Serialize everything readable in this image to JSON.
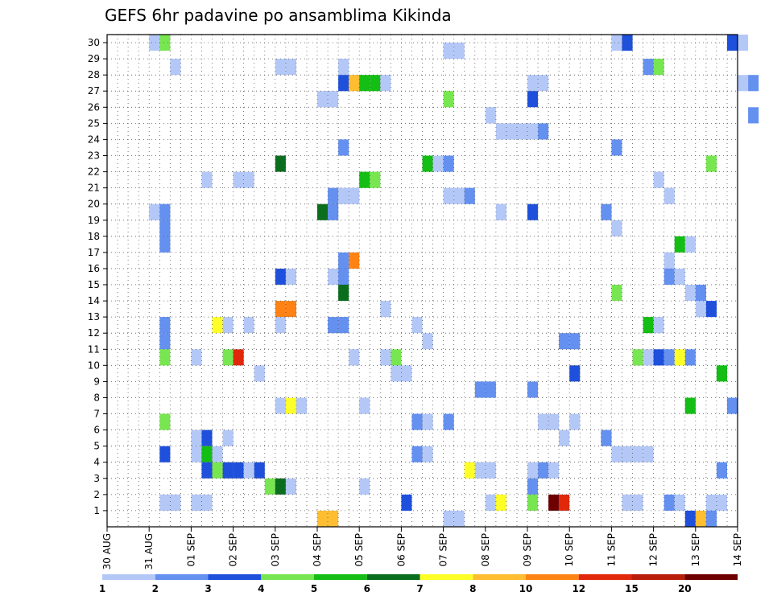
{
  "chart_data": {
    "type": "heatmap",
    "title": "GEFS 6hr padavine po ansamblima Kikinda",
    "xlabel": "",
    "ylabel": "",
    "grid": true,
    "time_step_hours": 6,
    "y_categories": [
      "1",
      "2",
      "3",
      "4",
      "5",
      "6",
      "7",
      "8",
      "9",
      "10",
      "11",
      "12",
      "13",
      "14",
      "15",
      "16",
      "17",
      "18",
      "19",
      "20",
      "21",
      "22",
      "23",
      "24",
      "25",
      "26",
      "27",
      "28",
      "29",
      "30"
    ],
    "x_tick_labels": [
      "30 AUG",
      "31 AUG",
      "01 SEP",
      "02 SEP",
      "03 SEP",
      "04 SEP",
      "05 SEP",
      "06 SEP",
      "07 SEP",
      "08 SEP",
      "09 SEP",
      "10 SEP",
      "11 SEP",
      "12 SEP",
      "13 SEP",
      "14 SEP"
    ],
    "legend": {
      "placement": "bottom",
      "labels": [
        "1",
        "2",
        "3",
        "4",
        "5",
        "6",
        "7",
        "8",
        "10",
        "12",
        "15",
        "20"
      ],
      "colors": [
        "#b4c8f8",
        "#6490f0",
        "#1e50dc",
        "#78e650",
        "#14be14",
        "#0a6e1e",
        "#ffff28",
        "#ffbe32",
        "#ff8214",
        "#e1280a",
        "#b91e0a",
        "#6e0000"
      ]
    },
    "cells": [
      {
        "member": 30,
        "start": "31 AUG 00Z",
        "category": 0
      },
      {
        "member": 30,
        "start": "31 AUG 06Z",
        "category": 3
      },
      {
        "member": 30,
        "start": "11 SEP 00Z",
        "category": 0
      },
      {
        "member": 30,
        "start": "11 SEP 06Z",
        "category": 2
      },
      {
        "member": 30,
        "start": "13 SEP 18Z",
        "category": 2
      },
      {
        "member": 30,
        "start": "14 SEP 00Z",
        "category": 0
      },
      {
        "member": 29,
        "start": "07 SEP 00Z",
        "category": 0
      },
      {
        "member": 29,
        "start": "07 SEP 06Z",
        "category": 0
      },
      {
        "member": 28,
        "start": "31 AUG 12Z",
        "category": 0
      },
      {
        "member": 28,
        "start": "03 SEP 00Z",
        "category": 0
      },
      {
        "member": 28,
        "start": "03 SEP 06Z",
        "category": 0
      },
      {
        "member": 28,
        "start": "04 SEP 12Z",
        "category": 0
      },
      {
        "member": 28,
        "start": "11 SEP 18Z",
        "category": 1
      },
      {
        "member": 28,
        "start": "12 SEP 00Z",
        "category": 3
      },
      {
        "member": 27,
        "start": "04 SEP 12Z",
        "category": 2
      },
      {
        "member": 27,
        "start": "04 SEP 18Z",
        "category": 7
      },
      {
        "member": 27,
        "start": "05 SEP 00Z",
        "category": 4
      },
      {
        "member": 27,
        "start": "05 SEP 06Z",
        "category": 4
      },
      {
        "member": 27,
        "start": "05 SEP 12Z",
        "category": 0
      },
      {
        "member": 27,
        "start": "09 SEP 00Z",
        "category": 0
      },
      {
        "member": 27,
        "start": "09 SEP 06Z",
        "category": 0
      },
      {
        "member": 27,
        "start": "14 SEP 00Z",
        "category": 0
      },
      {
        "member": 27,
        "start": "14 SEP 06Z",
        "category": 1
      },
      {
        "member": 26,
        "start": "04 SEP 00Z",
        "category": 0
      },
      {
        "member": 26,
        "start": "04 SEP 06Z",
        "category": 0
      },
      {
        "member": 26,
        "start": "07 SEP 00Z",
        "category": 3
      },
      {
        "member": 26,
        "start": "09 SEP 00Z",
        "category": 2
      },
      {
        "member": 25,
        "start": "08 SEP 00Z",
        "category": 0
      },
      {
        "member": 25,
        "start": "14 SEP 06Z",
        "category": 1
      },
      {
        "member": 24,
        "start": "08 SEP 06Z",
        "category": 0
      },
      {
        "member": 24,
        "start": "08 SEP 12Z",
        "category": 0
      },
      {
        "member": 24,
        "start": "08 SEP 18Z",
        "category": 0
      },
      {
        "member": 24,
        "start": "09 SEP 00Z",
        "category": 0
      },
      {
        "member": 24,
        "start": "09 SEP 06Z",
        "category": 1
      },
      {
        "member": 23,
        "start": "04 SEP 12Z",
        "category": 1
      },
      {
        "member": 23,
        "start": "11 SEP 00Z",
        "category": 1
      },
      {
        "member": 22,
        "start": "03 SEP 00Z",
        "category": 5
      },
      {
        "member": 22,
        "start": "06 SEP 12Z",
        "category": 4
      },
      {
        "member": 22,
        "start": "06 SEP 18Z",
        "category": 0
      },
      {
        "member": 22,
        "start": "07 SEP 00Z",
        "category": 1
      },
      {
        "member": 22,
        "start": "13 SEP 06Z",
        "category": 3
      },
      {
        "member": 21,
        "start": "01 SEP 06Z",
        "category": 0
      },
      {
        "member": 21,
        "start": "02 SEP 00Z",
        "category": 0
      },
      {
        "member": 21,
        "start": "02 SEP 06Z",
        "category": 0
      },
      {
        "member": 21,
        "start": "05 SEP 00Z",
        "category": 4
      },
      {
        "member": 21,
        "start": "05 SEP 06Z",
        "category": 3
      },
      {
        "member": 21,
        "start": "12 SEP 00Z",
        "category": 0
      },
      {
        "member": 20,
        "start": "04 SEP 06Z",
        "category": 1
      },
      {
        "member": 20,
        "start": "04 SEP 12Z",
        "category": 0
      },
      {
        "member": 20,
        "start": "04 SEP 18Z",
        "category": 0
      },
      {
        "member": 20,
        "start": "07 SEP 00Z",
        "category": 0
      },
      {
        "member": 20,
        "start": "07 SEP 06Z",
        "category": 0
      },
      {
        "member": 20,
        "start": "07 SEP 12Z",
        "category": 1
      },
      {
        "member": 20,
        "start": "12 SEP 06Z",
        "category": 0
      },
      {
        "member": 19,
        "start": "31 AUG 00Z",
        "category": 0
      },
      {
        "member": 19,
        "start": "31 AUG 06Z",
        "category": 1
      },
      {
        "member": 19,
        "start": "04 SEP 00Z",
        "category": 5
      },
      {
        "member": 19,
        "start": "04 SEP 06Z",
        "category": 1
      },
      {
        "member": 19,
        "start": "08 SEP 06Z",
        "category": 0
      },
      {
        "member": 19,
        "start": "09 SEP 00Z",
        "category": 2
      },
      {
        "member": 19,
        "start": "10 SEP 18Z",
        "category": 1
      },
      {
        "member": 18,
        "start": "31 AUG 06Z",
        "category": 1
      },
      {
        "member": 18,
        "start": "11 SEP 00Z",
        "category": 0
      },
      {
        "member": 17,
        "start": "31 AUG 06Z",
        "category": 1
      },
      {
        "member": 17,
        "start": "12 SEP 12Z",
        "category": 4
      },
      {
        "member": 17,
        "start": "12 SEP 18Z",
        "category": 0
      },
      {
        "member": 16,
        "start": "04 SEP 12Z",
        "category": 1
      },
      {
        "member": 16,
        "start": "04 SEP 18Z",
        "category": 8
      },
      {
        "member": 16,
        "start": "12 SEP 06Z",
        "category": 0
      },
      {
        "member": 15,
        "start": "03 SEP 00Z",
        "category": 2
      },
      {
        "member": 15,
        "start": "03 SEP 06Z",
        "category": 0
      },
      {
        "member": 15,
        "start": "04 SEP 06Z",
        "category": 0
      },
      {
        "member": 15,
        "start": "04 SEP 12Z",
        "category": 1
      },
      {
        "member": 15,
        "start": "12 SEP 06Z",
        "category": 1
      },
      {
        "member": 15,
        "start": "12 SEP 12Z",
        "category": 0
      },
      {
        "member": 14,
        "start": "04 SEP 12Z",
        "category": 5
      },
      {
        "member": 14,
        "start": "11 SEP 00Z",
        "category": 3
      },
      {
        "member": 14,
        "start": "12 SEP 18Z",
        "category": 0
      },
      {
        "member": 14,
        "start": "13 SEP 00Z",
        "category": 1
      },
      {
        "member": 13,
        "start": "03 SEP 00Z",
        "category": 8
      },
      {
        "member": 13,
        "start": "03 SEP 06Z",
        "category": 8
      },
      {
        "member": 13,
        "start": "05 SEP 12Z",
        "category": 0
      },
      {
        "member": 13,
        "start": "13 SEP 00Z",
        "category": 0
      },
      {
        "member": 13,
        "start": "13 SEP 06Z",
        "category": 2
      },
      {
        "member": 12,
        "start": "01 SEP 12Z",
        "category": 6
      },
      {
        "member": 12,
        "start": "01 SEP 18Z",
        "category": 0
      },
      {
        "member": 12,
        "start": "02 SEP 06Z",
        "category": 0
      },
      {
        "member": 12,
        "start": "03 SEP 00Z",
        "category": 0
      },
      {
        "member": 12,
        "start": "04 SEP 06Z",
        "category": 1
      },
      {
        "member": 12,
        "start": "04 SEP 12Z",
        "category": 1
      },
      {
        "member": 12,
        "start": "06 SEP 06Z",
        "category": 0
      },
      {
        "member": 12,
        "start": "11 SEP 18Z",
        "category": 4
      },
      {
        "member": 12,
        "start": "12 SEP 00Z",
        "category": 0
      },
      {
        "member": 12,
        "start": "31 AUG 06Z",
        "category": 1
      },
      {
        "member": 11,
        "start": "31 AUG 06Z",
        "category": 1
      },
      {
        "member": 11,
        "start": "06 SEP 12Z",
        "category": 0
      },
      {
        "member": 11,
        "start": "09 SEP 18Z",
        "category": 1
      },
      {
        "member": 11,
        "start": "10 SEP 00Z",
        "category": 1
      },
      {
        "member": 10,
        "start": "31 AUG 06Z",
        "category": 3
      },
      {
        "member": 10,
        "start": "01 SEP 00Z",
        "category": 0
      },
      {
        "member": 10,
        "start": "01 SEP 18Z",
        "category": 3
      },
      {
        "member": 10,
        "start": "02 SEP 00Z",
        "category": 9
      },
      {
        "member": 10,
        "start": "04 SEP 18Z",
        "category": 0
      },
      {
        "member": 10,
        "start": "05 SEP 12Z",
        "category": 0
      },
      {
        "member": 10,
        "start": "05 SEP 18Z",
        "category": 3
      },
      {
        "member": 10,
        "start": "11 SEP 12Z",
        "category": 3
      },
      {
        "member": 10,
        "start": "11 SEP 18Z",
        "category": 0
      },
      {
        "member": 10,
        "start": "12 SEP 00Z",
        "category": 2
      },
      {
        "member": 10,
        "start": "12 SEP 06Z",
        "category": 1
      },
      {
        "member": 10,
        "start": "12 SEP 12Z",
        "category": 6
      },
      {
        "member": 10,
        "start": "12 SEP 18Z",
        "category": 1
      },
      {
        "member": 9,
        "start": "02 SEP 12Z",
        "category": 0
      },
      {
        "member": 9,
        "start": "05 SEP 18Z",
        "category": 0
      },
      {
        "member": 9,
        "start": "06 SEP 00Z",
        "category": 0
      },
      {
        "member": 9,
        "start": "10 SEP 00Z",
        "category": 2
      },
      {
        "member": 9,
        "start": "13 SEP 12Z",
        "category": 4
      },
      {
        "member": 8,
        "start": "07 SEP 18Z",
        "category": 1
      },
      {
        "member": 8,
        "start": "08 SEP 00Z",
        "category": 1
      },
      {
        "member": 8,
        "start": "09 SEP 00Z",
        "category": 1
      },
      {
        "member": 7,
        "start": "03 SEP 00Z",
        "category": 0
      },
      {
        "member": 7,
        "start": "03 SEP 06Z",
        "category": 6
      },
      {
        "member": 7,
        "start": "03 SEP 12Z",
        "category": 0
      },
      {
        "member": 7,
        "start": "05 SEP 00Z",
        "category": 0
      },
      {
        "member": 7,
        "start": "12 SEP 18Z",
        "category": 4
      },
      {
        "member": 7,
        "start": "13 SEP 18Z",
        "category": 1
      },
      {
        "member": 6,
        "start": "31 AUG 06Z",
        "category": 3
      },
      {
        "member": 6,
        "start": "06 SEP 06Z",
        "category": 1
      },
      {
        "member": 6,
        "start": "06 SEP 12Z",
        "category": 0
      },
      {
        "member": 6,
        "start": "07 SEP 00Z",
        "category": 1
      },
      {
        "member": 6,
        "start": "09 SEP 06Z",
        "category": 0
      },
      {
        "member": 6,
        "start": "09 SEP 12Z",
        "category": 0
      },
      {
        "member": 6,
        "start": "10 SEP 00Z",
        "category": 0
      },
      {
        "member": 5,
        "start": "01 SEP 18Z",
        "category": 0
      },
      {
        "member": 5,
        "start": "01 SEP 06Z",
        "category": 2
      },
      {
        "member": 5,
        "start": "01 SEP 00Z",
        "category": 0
      },
      {
        "member": 5,
        "start": "09 SEP 18Z",
        "category": 0
      },
      {
        "member": 5,
        "start": "10 SEP 18Z",
        "category": 1
      },
      {
        "member": 4,
        "start": "31 AUG 06Z",
        "category": 2
      },
      {
        "member": 4,
        "start": "01 SEP 00Z",
        "category": 0
      },
      {
        "member": 4,
        "start": "01 SEP 06Z",
        "category": 4
      },
      {
        "member": 4,
        "start": "01 SEP 12Z",
        "category": 0
      },
      {
        "member": 4,
        "start": "06 SEP 06Z",
        "category": 1
      },
      {
        "member": 4,
        "start": "06 SEP 12Z",
        "category": 0
      },
      {
        "member": 4,
        "start": "11 SEP 00Z",
        "category": 0
      },
      {
        "member": 4,
        "start": "11 SEP 06Z",
        "category": 0
      },
      {
        "member": 4,
        "start": "11 SEP 12Z",
        "category": 0
      },
      {
        "member": 4,
        "start": "11 SEP 18Z",
        "category": 0
      },
      {
        "member": 3,
        "start": "01 SEP 06Z",
        "category": 2
      },
      {
        "member": 3,
        "start": "01 SEP 12Z",
        "category": 3
      },
      {
        "member": 3,
        "start": "01 SEP 18Z",
        "category": 2
      },
      {
        "member": 3,
        "start": "02 SEP 00Z",
        "category": 2
      },
      {
        "member": 3,
        "start": "02 SEP 06Z",
        "category": 0
      },
      {
        "member": 3,
        "start": "02 SEP 12Z",
        "category": 2
      },
      {
        "member": 3,
        "start": "07 SEP 12Z",
        "category": 6
      },
      {
        "member": 3,
        "start": "07 SEP 18Z",
        "category": 0
      },
      {
        "member": 3,
        "start": "08 SEP 00Z",
        "category": 0
      },
      {
        "member": 3,
        "start": "09 SEP 00Z",
        "category": 0
      },
      {
        "member": 3,
        "start": "09 SEP 06Z",
        "category": 1
      },
      {
        "member": 3,
        "start": "09 SEP 12Z",
        "category": 0
      },
      {
        "member": 3,
        "start": "13 SEP 12Z",
        "category": 1
      },
      {
        "member": 2,
        "start": "02 SEP 18Z",
        "category": 3
      },
      {
        "member": 2,
        "start": "03 SEP 00Z",
        "category": 5
      },
      {
        "member": 2,
        "start": "03 SEP 06Z",
        "category": 0
      },
      {
        "member": 2,
        "start": "05 SEP 00Z",
        "category": 0
      },
      {
        "member": 2,
        "start": "09 SEP 00Z",
        "category": 1
      },
      {
        "member": 1,
        "start": "31 AUG 06Z",
        "category": 0
      },
      {
        "member": 1,
        "start": "31 AUG 12Z",
        "category": 0
      },
      {
        "member": 1,
        "start": "01 SEP 00Z",
        "category": 0
      },
      {
        "member": 1,
        "start": "01 SEP 06Z",
        "category": 0
      },
      {
        "member": 1,
        "start": "06 SEP 00Z",
        "category": 2
      },
      {
        "member": 1,
        "start": "08 SEP 00Z",
        "category": 0
      },
      {
        "member": 1,
        "start": "08 SEP 06Z",
        "category": 6
      },
      {
        "member": 1,
        "start": "09 SEP 00Z",
        "category": 3
      },
      {
        "member": 1,
        "start": "09 SEP 12Z",
        "category": 11
      },
      {
        "member": 1,
        "start": "09 SEP 18Z",
        "category": 9
      },
      {
        "member": 1,
        "start": "11 SEP 06Z",
        "category": 0
      },
      {
        "member": 1,
        "start": "11 SEP 12Z",
        "category": 0
      },
      {
        "member": 1,
        "start": "12 SEP 06Z",
        "category": 1
      },
      {
        "member": 1,
        "start": "12 SEP 12Z",
        "category": 0
      },
      {
        "member": 1,
        "start": "13 SEP 06Z",
        "category": 0
      },
      {
        "member": 1,
        "start": "13 SEP 12Z",
        "category": 0
      },
      {
        "member": 0,
        "start": "04 SEP 00Z",
        "category": 7
      },
      {
        "member": 0,
        "start": "04 SEP 06Z",
        "category": 7
      },
      {
        "member": 0,
        "start": "07 SEP 00Z",
        "category": 0
      },
      {
        "member": 0,
        "start": "07 SEP 06Z",
        "category": 0
      },
      {
        "member": 0,
        "start": "12 SEP 18Z",
        "category": 2
      },
      {
        "member": 0,
        "start": "13 SEP 00Z",
        "category": 7
      },
      {
        "member": 0,
        "start": "13 SEP 06Z",
        "category": 1
      }
    ]
  }
}
